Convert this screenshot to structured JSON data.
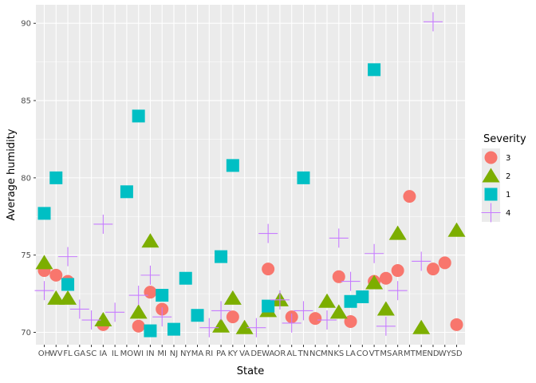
{
  "chart_data": {
    "type": "scatter",
    "xlabel": "State",
    "ylabel": "Average humidity",
    "ylim": [
      69.2,
      91.2
    ],
    "yticks": [
      70,
      75,
      80,
      85,
      90
    ],
    "categories": [
      "OH",
      "WV",
      "FL",
      "GA",
      "SC",
      "IA",
      "IL",
      "MO",
      "WI",
      "IN",
      "MI",
      "NJ",
      "NY",
      "MA",
      "RI",
      "PA",
      "KY",
      "VA",
      "DE",
      "WA",
      "OR",
      "AL",
      "TN",
      "NC",
      "MN",
      "KS",
      "LA",
      "CO",
      "VT",
      "MS",
      "AR",
      "MT",
      "ME",
      "ND",
      "WY",
      "SD"
    ],
    "legend": {
      "title": "Severity",
      "position": "right"
    },
    "series": [
      {
        "name": "3",
        "shape": "circle",
        "color": "#F8766D",
        "points": [
          [
            "OH",
            74.0
          ],
          [
            "WV",
            73.7
          ],
          [
            "FL",
            73.3
          ],
          [
            "IA",
            70.5
          ],
          [
            "WI",
            70.4
          ],
          [
            "IN",
            72.6
          ],
          [
            "MI",
            71.5
          ],
          [
            "KY",
            71.0
          ],
          [
            "WA",
            74.1
          ],
          [
            "AL",
            71.0
          ],
          [
            "NC",
            70.9
          ],
          [
            "KS",
            73.6
          ],
          [
            "LA",
            70.7
          ],
          [
            "VT",
            73.3
          ],
          [
            "MS",
            73.5
          ],
          [
            "AR",
            74.0
          ],
          [
            "MT",
            78.8
          ],
          [
            "ND",
            74.1
          ],
          [
            "WY",
            74.5
          ],
          [
            "SD",
            70.5
          ]
        ]
      },
      {
        "name": "2",
        "shape": "triangle",
        "color": "#7CAE00",
        "points": [
          [
            "OH",
            74.5
          ],
          [
            "WV",
            72.2
          ],
          [
            "FL",
            72.2
          ],
          [
            "IA",
            70.8
          ],
          [
            "WI",
            71.3
          ],
          [
            "IN",
            75.9
          ],
          [
            "PA",
            70.4
          ],
          [
            "KY",
            72.2
          ],
          [
            "VA",
            70.3
          ],
          [
            "WA",
            71.4
          ],
          [
            "OR",
            72.1
          ],
          [
            "MN",
            72.0
          ],
          [
            "KS",
            71.3
          ],
          [
            "VT",
            73.2
          ],
          [
            "MS",
            71.5
          ],
          [
            "AR",
            76.4
          ],
          [
            "ME",
            70.3
          ],
          [
            "SD",
            76.6
          ]
        ]
      },
      {
        "name": "1",
        "shape": "square",
        "color": "#00BFC4",
        "points": [
          [
            "OH",
            77.7
          ],
          [
            "WV",
            80.0
          ],
          [
            "FL",
            73.1
          ],
          [
            "MO",
            79.1
          ],
          [
            "WI",
            84.0
          ],
          [
            "IN",
            70.1
          ],
          [
            "MI",
            72.4
          ],
          [
            "NJ",
            70.2
          ],
          [
            "NY",
            73.5
          ],
          [
            "MA",
            71.1
          ],
          [
            "PA",
            74.9
          ],
          [
            "KY",
            80.8
          ],
          [
            "WA",
            71.7
          ],
          [
            "TN",
            80.0
          ],
          [
            "LA",
            72.0
          ],
          [
            "CO",
            72.3
          ],
          [
            "VT",
            87.0
          ]
        ]
      },
      {
        "name": "4",
        "shape": "cross",
        "color": "#C77CFF",
        "points": [
          [
            "OH",
            72.7
          ],
          [
            "FL",
            74.9
          ],
          [
            "GA",
            71.5
          ],
          [
            "SC",
            70.8
          ],
          [
            "IA",
            77.0
          ],
          [
            "IL",
            71.3
          ],
          [
            "WI",
            72.4
          ],
          [
            "IN",
            73.7
          ],
          [
            "MI",
            71.0
          ],
          [
            "RI",
            70.3
          ],
          [
            "PA",
            71.4
          ],
          [
            "DE",
            70.3
          ],
          [
            "WA",
            76.4
          ],
          [
            "OR",
            72.1
          ],
          [
            "AL",
            70.6
          ],
          [
            "TN",
            71.4
          ],
          [
            "MN",
            70.8
          ],
          [
            "KS",
            76.1
          ],
          [
            "LA",
            73.3
          ],
          [
            "VT",
            75.1
          ],
          [
            "MS",
            70.4
          ],
          [
            "AR",
            72.7
          ],
          [
            "ME",
            74.6
          ],
          [
            "ND",
            90.1
          ]
        ]
      }
    ]
  }
}
